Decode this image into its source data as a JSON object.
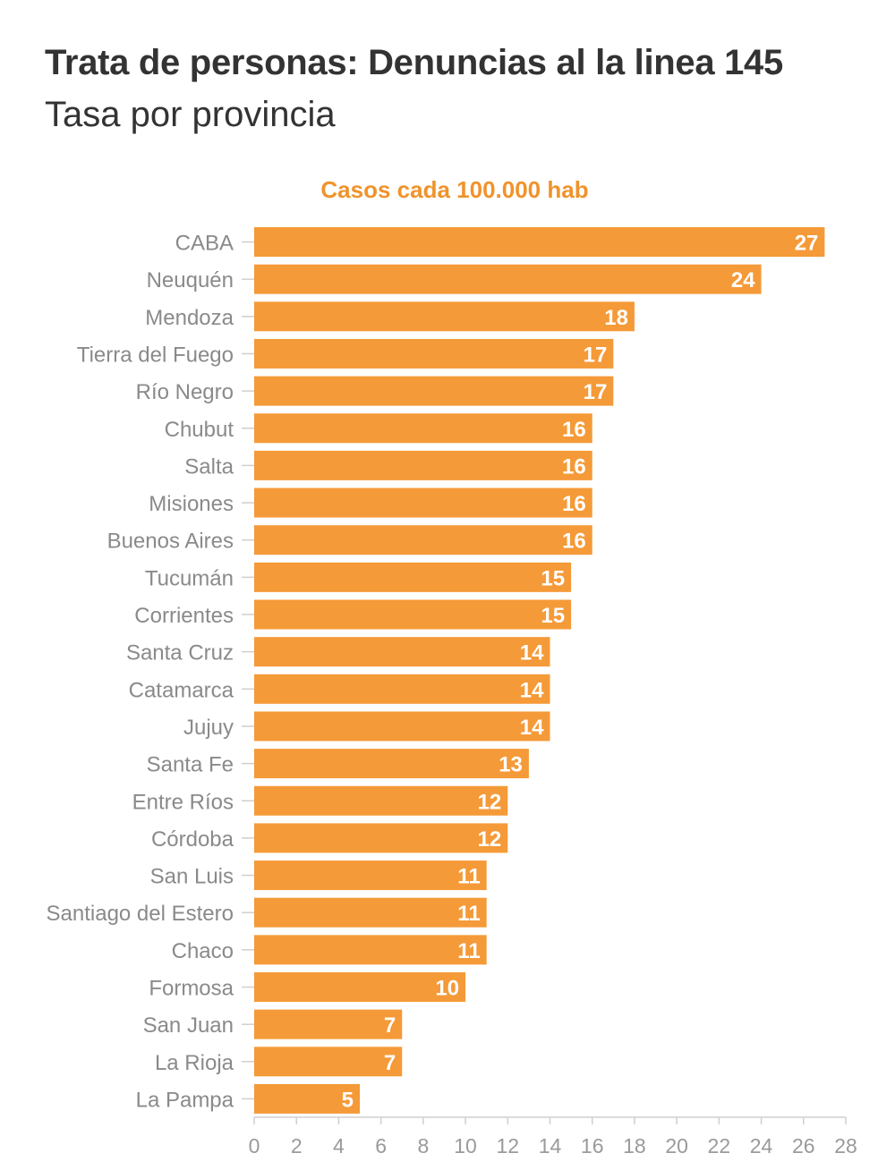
{
  "header": {
    "title": "Trata de personas: Denuncias al la linea 145",
    "subtitle": "Tasa por provincia"
  },
  "colors": {
    "bar": "#F59A38",
    "legend_text": "#F0932B",
    "category_text": "#8a8a8a",
    "axis_text": "#9a9a9a",
    "axis_line": "#cfcfcf",
    "value_label": "#ffffff"
  },
  "chart_data": {
    "type": "bar",
    "orientation": "horizontal",
    "title": "Trata de personas: Denuncias al la linea 145",
    "subtitle": "Tasa por provincia",
    "legend": "Casos cada 100.000 hab",
    "xlabel": "",
    "ylabel": "",
    "xlim": [
      0,
      28
    ],
    "xticks": [
      0,
      2,
      4,
      6,
      8,
      10,
      12,
      14,
      16,
      18,
      20,
      22,
      24,
      26,
      28
    ],
    "grid": false,
    "categories": [
      "CABA",
      "Neuquén",
      "Mendoza",
      "Tierra del Fuego",
      "Río Negro",
      "Chubut",
      "Salta",
      "Misiones",
      "Buenos Aires",
      "Tucumán",
      "Corrientes",
      "Santa Cruz",
      "Catamarca",
      "Jujuy",
      "Santa Fe",
      "Entre Ríos",
      "Córdoba",
      "San Luis",
      "Santiago del Estero",
      "Chaco",
      "Formosa",
      "San Juan",
      "La Rioja",
      "La Pampa"
    ],
    "series": [
      {
        "values": [
          27,
          24,
          18,
          17,
          17,
          16,
          16,
          16,
          16,
          15,
          15,
          14,
          14,
          14,
          13,
          12,
          12,
          11,
          11,
          11,
          10,
          7,
          7,
          5
        ]
      }
    ]
  }
}
